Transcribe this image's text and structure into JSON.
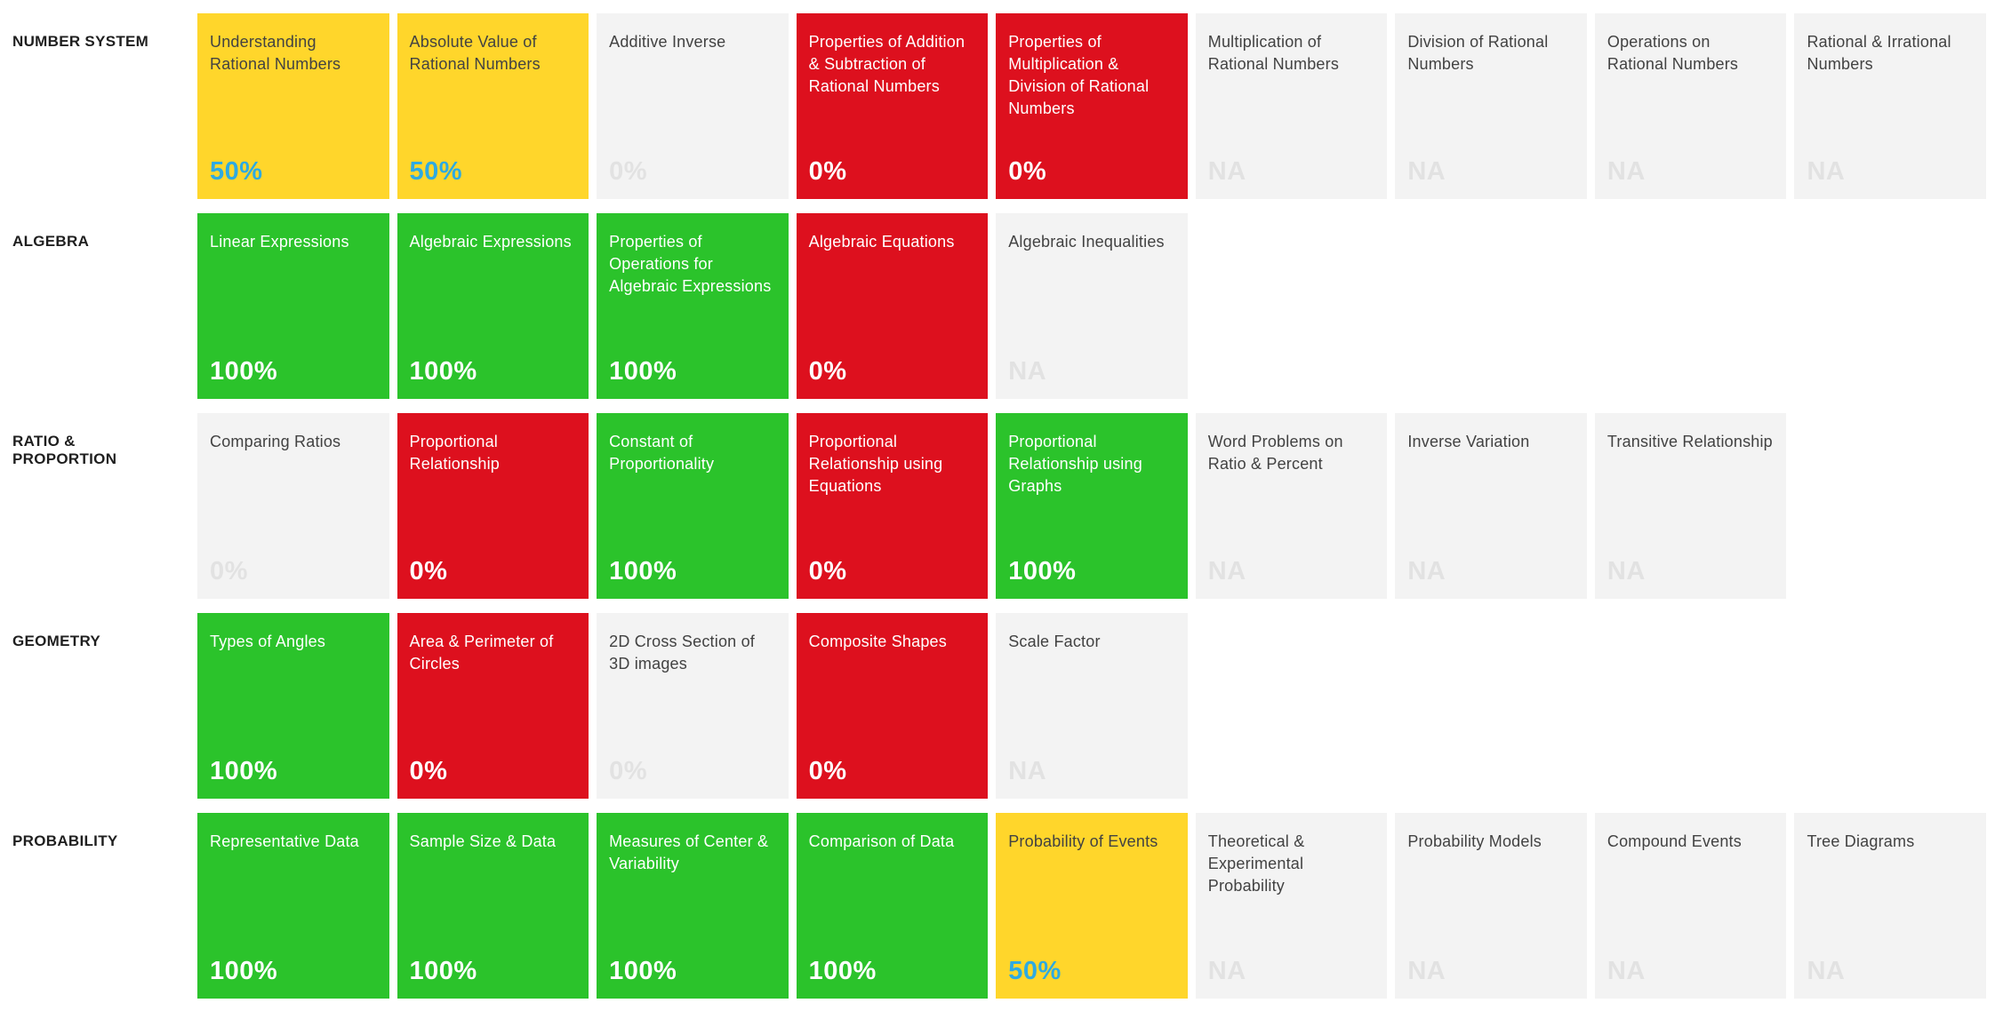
{
  "colors": {
    "mastered_green": "#2BC32B",
    "partial_yellow": "#FFD62B",
    "failed_red": "#DD101E",
    "not_attempted_gray": "#F3F3F3",
    "partial_score_blue": "#2EAAE1",
    "muted_score_gray": "#E2E2E2",
    "dark_text": "#424242",
    "category_label_text": "#1F1F1F"
  },
  "rows": [
    {
      "label": "NUMBER SYSTEM",
      "cards": [
        {
          "title": "Understanding Rational Numbers",
          "score": "50%",
          "status": "partial"
        },
        {
          "title": "Absolute Value of Rational Numbers",
          "score": "50%",
          "status": "partial"
        },
        {
          "title": "Additive Inverse",
          "score": "0%",
          "status": "na-zero"
        },
        {
          "title": "Properties of Addition & Subtraction of Rational Numbers",
          "score": "0%",
          "status": "failed"
        },
        {
          "title": "Properties of Multiplication & Division of Rational Numbers",
          "score": "0%",
          "status": "failed"
        },
        {
          "title": "Multiplication of Rational Numbers",
          "score": "NA",
          "status": "na"
        },
        {
          "title": "Division of Rational Numbers",
          "score": "NA",
          "status": "na"
        },
        {
          "title": "Operations on Rational Numbers",
          "score": "NA",
          "status": "na"
        },
        {
          "title": "Rational & Irrational Numbers",
          "score": "NA",
          "status": "na"
        }
      ]
    },
    {
      "label": "ALGEBRA",
      "cards": [
        {
          "title": "Linear Expressions",
          "score": "100%",
          "status": "mastered"
        },
        {
          "title": "Algebraic Expressions",
          "score": "100%",
          "status": "mastered"
        },
        {
          "title": "Properties of Operations for Algebraic Expressions",
          "score": "100%",
          "status": "mastered"
        },
        {
          "title": "Algebraic Equations",
          "score": "0%",
          "status": "failed"
        },
        {
          "title": "Algebraic Inequalities",
          "score": "NA",
          "status": "na"
        }
      ]
    },
    {
      "label": "RATIO &\nPROPORTION",
      "cards": [
        {
          "title": "Comparing Ratios",
          "score": "0%",
          "status": "na-zero"
        },
        {
          "title": "Proportional Relationship",
          "score": "0%",
          "status": "failed"
        },
        {
          "title": "Constant of Proportionality",
          "score": "100%",
          "status": "mastered"
        },
        {
          "title": "Proportional Relationship using Equations",
          "score": "0%",
          "status": "failed"
        },
        {
          "title": "Proportional Relationship using Graphs",
          "score": "100%",
          "status": "mastered"
        },
        {
          "title": "Word Problems on Ratio & Percent",
          "score": "NA",
          "status": "na"
        },
        {
          "title": "Inverse Variation",
          "score": "NA",
          "status": "na"
        },
        {
          "title": "Transitive Relationship",
          "score": "NA",
          "status": "na"
        }
      ]
    },
    {
      "label": "GEOMETRY",
      "cards": [
        {
          "title": "Types of Angles",
          "score": "100%",
          "status": "mastered"
        },
        {
          "title": "Area & Perimeter of Circles",
          "score": "0%",
          "status": "failed"
        },
        {
          "title": "2D Cross Section of 3D images",
          "score": "0%",
          "status": "na-zero"
        },
        {
          "title": "Composite Shapes",
          "score": "0%",
          "status": "failed"
        },
        {
          "title": "Scale Factor",
          "score": "NA",
          "status": "na"
        }
      ]
    },
    {
      "label": "PROBABILITY",
      "cards": [
        {
          "title": "Representative Data",
          "score": "100%",
          "status": "mastered"
        },
        {
          "title": "Sample Size & Data",
          "score": "100%",
          "status": "mastered"
        },
        {
          "title": "Measures of Center & Variability",
          "score": "100%",
          "status": "mastered"
        },
        {
          "title": "Comparison of Data",
          "score": "100%",
          "status": "mastered"
        },
        {
          "title": "Probability of Events",
          "score": "50%",
          "status": "partial"
        },
        {
          "title": "Theoretical & Experimental Probability",
          "score": "NA",
          "status": "na"
        },
        {
          "title": "Probability Models",
          "score": "NA",
          "status": "na"
        },
        {
          "title": "Compound Events",
          "score": "NA",
          "status": "na"
        },
        {
          "title": "Tree Diagrams",
          "score": "NA",
          "status": "na"
        }
      ]
    }
  ]
}
